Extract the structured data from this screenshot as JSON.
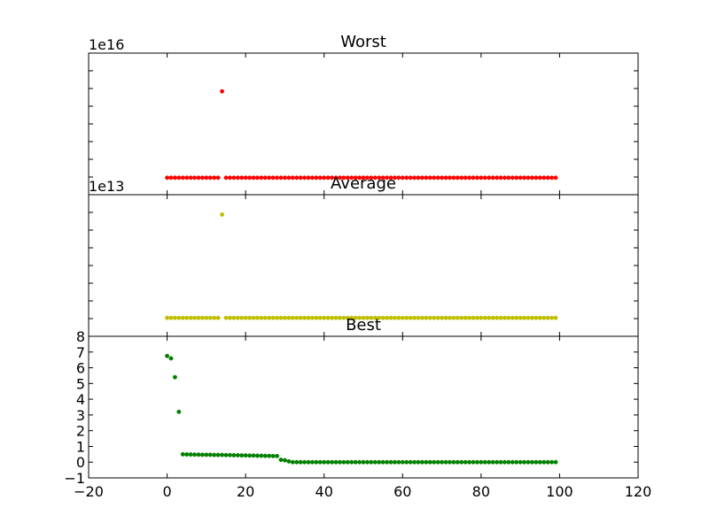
{
  "chart_data": [
    {
      "type": "scatter",
      "title": "Worst",
      "offset_label": "1e16",
      "color": "#ff0000",
      "xlim": [
        -20,
        120
      ],
      "ylim": [
        0,
        1
      ],
      "x_tick_labels_visible": false,
      "y_tick_labels_visible": false,
      "series": [
        {
          "outlier": {
            "x": 14,
            "y": 0.73
          },
          "baseline": 0.12,
          "x_range": [
            0,
            99
          ],
          "skip": [
            14
          ]
        }
      ]
    },
    {
      "type": "scatter",
      "title": "Average",
      "offset_label": "1e13",
      "color": "#bfbf00",
      "xlim": [
        -20,
        120
      ],
      "ylim": [
        0,
        1
      ],
      "x_tick_labels_visible": false,
      "y_tick_labels_visible": false,
      "series": [
        {
          "outlier": {
            "x": 14,
            "y": 0.86
          },
          "baseline": 0.13,
          "x_range": [
            0,
            99
          ],
          "skip": [
            14
          ]
        }
      ]
    },
    {
      "type": "scatter",
      "title": "Best",
      "color": "#008000",
      "xlim": [
        -20,
        120
      ],
      "ylim": [
        -1,
        8
      ],
      "x_ticks": [
        -20,
        0,
        20,
        40,
        60,
        80,
        100,
        120
      ],
      "x_tick_labels": [
        "−20",
        "0",
        "20",
        "40",
        "60",
        "80",
        "100",
        "120"
      ],
      "y_ticks": [
        -1,
        0,
        1,
        2,
        3,
        4,
        5,
        6,
        7,
        8
      ],
      "y_tick_labels": [
        "−1",
        "0",
        "1",
        "2",
        "3",
        "4",
        "5",
        "6",
        "7",
        "8"
      ],
      "series": [
        {
          "x": [
            0,
            1,
            2,
            3,
            4,
            5,
            6,
            7,
            8,
            9,
            10,
            11,
            12,
            13,
            14,
            15,
            16,
            17,
            18,
            19,
            20,
            21,
            22,
            23,
            24,
            25,
            26,
            27,
            28,
            29,
            30,
            31,
            32,
            33,
            34,
            35,
            36,
            37,
            38,
            39,
            40,
            41,
            42,
            43,
            44,
            45,
            46,
            47,
            48,
            49,
            50,
            51,
            52,
            53,
            54,
            55,
            56,
            57,
            58,
            59,
            60,
            61,
            62,
            63,
            64,
            65,
            66,
            67,
            68,
            69,
            70,
            71,
            72,
            73,
            74,
            75,
            76,
            77,
            78,
            79,
            80,
            81,
            82,
            83,
            84,
            85,
            86,
            87,
            88,
            89,
            90,
            91,
            92,
            93,
            94,
            95,
            96,
            97,
            98,
            99
          ],
          "y": [
            6.75,
            6.6,
            5.4,
            3.2,
            0.5,
            0.49,
            0.49,
            0.48,
            0.48,
            0.47,
            0.47,
            0.47,
            0.46,
            0.46,
            0.46,
            0.45,
            0.45,
            0.44,
            0.44,
            0.43,
            0.43,
            0.42,
            0.42,
            0.41,
            0.41,
            0.4,
            0.4,
            0.39,
            0.39,
            0.15,
            0.12,
            0.05,
            0,
            0,
            0,
            0,
            0,
            0,
            0,
            0,
            0,
            0,
            0,
            0,
            0,
            0,
            0,
            0,
            0,
            0,
            0,
            0,
            0,
            0,
            0,
            0,
            0,
            0,
            0,
            0,
            0,
            0,
            0,
            0,
            0,
            0,
            0,
            0,
            0,
            0,
            0,
            0,
            0,
            0,
            0,
            0,
            0,
            0,
            0,
            0,
            0,
            0,
            0,
            0,
            0,
            0,
            0,
            0,
            0,
            0,
            0,
            0,
            0,
            0,
            0,
            0,
            0,
            0,
            0,
            0
          ]
        }
      ]
    }
  ]
}
